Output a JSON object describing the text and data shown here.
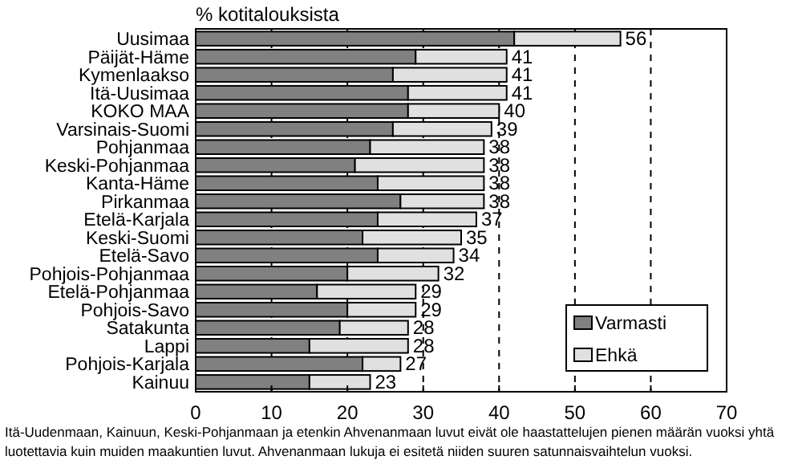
{
  "chart_data": {
    "type": "bar",
    "orientation": "horizontal",
    "stacked": true,
    "title": "% kotitalouksista",
    "categories": [
      "Uusimaa",
      "Päijät-Häme",
      "Kymenlaakso",
      "Itä-Uusimaa",
      "KOKO MAA",
      "Varsinais-Suomi",
      "Pohjanmaa",
      "Keski-Pohjanmaa",
      "Kanta-Häme",
      "Pirkanmaa",
      "Etelä-Karjala",
      "Keski-Suomi",
      "Etelä-Savo",
      "Pohjois-Pohjanmaa",
      "Etelä-Pohjanmaa",
      "Pohjois-Savo",
      "Satakunta",
      "Lappi",
      "Pohjois-Karjala",
      "Kainuu"
    ],
    "series": [
      {
        "name": "Varmasti",
        "color": "#808080",
        "values": [
          42,
          29,
          26,
          28,
          28,
          26,
          23,
          21,
          24,
          27,
          24,
          22,
          24,
          20,
          16,
          20,
          19,
          15,
          22,
          15
        ]
      },
      {
        "name": "Ehkä",
        "color": "#e0e0e0",
        "values": [
          14,
          12,
          15,
          13,
          12,
          13,
          15,
          17,
          14,
          11,
          13,
          13,
          10,
          12,
          13,
          9,
          9,
          13,
          5,
          8
        ]
      }
    ],
    "totals": [
      "56",
      "41",
      "41",
      "41",
      "40",
      "39",
      "38",
      "38",
      "38",
      "38",
      "37",
      "35",
      "34",
      "32",
      "29",
      "29",
      "28",
      "28",
      "27",
      "23"
    ],
    "xlim": [
      0,
      70
    ],
    "xticks": [
      0,
      10,
      20,
      30,
      40,
      50,
      60,
      70
    ],
    "grid": "x",
    "legend": "bottom right",
    "annotations": [
      "Itä-Uudenmaan, Kainuun, Keski-Pohjanmaan ja etenkin Ahvenanmaan luvut eivät ole haastattelujen pienen määrän vuoksi yhtä luotettavia kuin muiden maakuntien luvut. Ahvenanmaan lukuja ei esitetä niiden suuren satunnaisvaihtelun vuoksi."
    ]
  }
}
